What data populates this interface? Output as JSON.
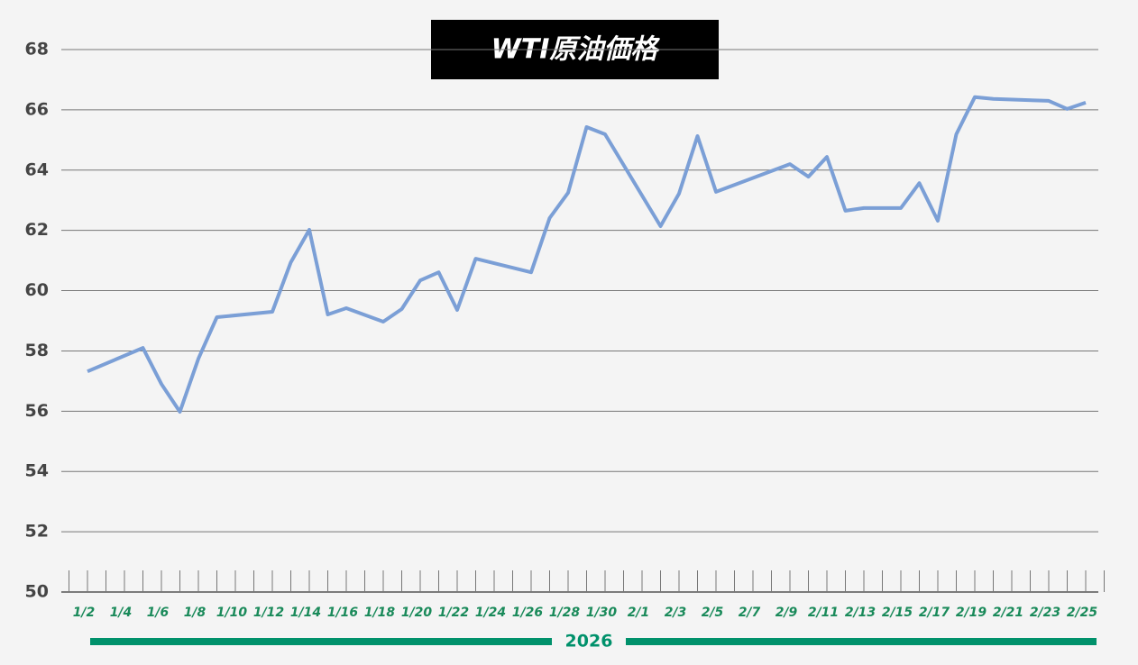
{
  "chart_data": {
    "type": "line",
    "title": "WTI原油価格",
    "year_label": "2026",
    "x": [
      "2026-01-02",
      "2026-01-05",
      "2026-01-06",
      "2026-01-07",
      "2026-01-08",
      "2026-01-09",
      "2026-01-12",
      "2026-01-13",
      "2026-01-14",
      "2026-01-15",
      "2026-01-16",
      "2026-01-18",
      "2026-01-19",
      "2026-01-20",
      "2026-01-21",
      "2026-01-22",
      "2026-01-23",
      "2026-01-26",
      "2026-01-27",
      "2026-01-28",
      "2026-01-29",
      "2026-01-30",
      "2026-02-02",
      "2026-02-03",
      "2026-02-04",
      "2026-02-05",
      "2026-02-09",
      "2026-02-10",
      "2026-02-11",
      "2026-02-12",
      "2026-02-13",
      "2026-02-15",
      "2026-02-16",
      "2026-02-17",
      "2026-02-18",
      "2026-02-19",
      "2026-02-20",
      "2026-02-23",
      "2026-02-24",
      "2026-02-25"
    ],
    "series": [
      {
        "name": "WTI",
        "color": "#7b9fd6",
        "values": [
          57.32,
          58.1,
          56.9,
          55.98,
          57.74,
          59.12,
          59.3,
          60.94,
          62.02,
          59.21,
          59.42,
          58.97,
          59.39,
          60.34,
          60.61,
          59.36,
          61.06,
          60.61,
          62.41,
          63.25,
          65.43,
          65.19,
          62.14,
          63.22,
          65.13,
          63.28,
          64.2,
          63.78,
          64.44,
          62.65,
          62.74,
          62.74,
          63.57,
          62.32,
          65.19,
          66.42,
          66.36,
          66.3,
          66.03,
          66.24
        ]
      }
    ],
    "ylim": [
      50,
      68
    ],
    "yticks": [
      50,
      52,
      54,
      56,
      58,
      60,
      62,
      64,
      66,
      68
    ],
    "grid": true,
    "xlim": [
      "2026-01-01",
      "2026-02-26"
    ],
    "xticks": [
      {
        "value": "2026-01-01",
        "label": null
      },
      {
        "value": "2026-01-02",
        "label": "1/2"
      },
      {
        "value": "2026-01-03",
        "label": null
      },
      {
        "value": "2026-01-04",
        "label": "1/4"
      },
      {
        "value": "2026-01-05",
        "label": null
      },
      {
        "value": "2026-01-06",
        "label": "1/6"
      },
      {
        "value": "2026-01-07",
        "label": null
      },
      {
        "value": "2026-01-08",
        "label": "1/8"
      },
      {
        "value": "2026-01-09",
        "label": null
      },
      {
        "value": "2026-01-10",
        "label": "1/10"
      },
      {
        "value": "2026-01-11",
        "label": null
      },
      {
        "value": "2026-01-12",
        "label": "1/12"
      },
      {
        "value": "2026-01-13",
        "label": null
      },
      {
        "value": "2026-01-14",
        "label": "1/14"
      },
      {
        "value": "2026-01-15",
        "label": null
      },
      {
        "value": "2026-01-16",
        "label": "1/16"
      },
      {
        "value": "2026-01-17",
        "label": null
      },
      {
        "value": "2026-01-18",
        "label": "1/18"
      },
      {
        "value": "2026-01-19",
        "label": null
      },
      {
        "value": "2026-01-20",
        "label": "1/20"
      },
      {
        "value": "2026-01-21",
        "label": null
      },
      {
        "value": "2026-01-22",
        "label": "1/22"
      },
      {
        "value": "2026-01-23",
        "label": null
      },
      {
        "value": "2026-01-24",
        "label": "1/24"
      },
      {
        "value": "2026-01-25",
        "label": null
      },
      {
        "value": "2026-01-26",
        "label": "1/26"
      },
      {
        "value": "2026-01-27",
        "label": null
      },
      {
        "value": "2026-01-28",
        "label": "1/28"
      },
      {
        "value": "2026-01-29",
        "label": null
      },
      {
        "value": "2026-01-30",
        "label": "1/30"
      },
      {
        "value": "2026-01-31",
        "label": null
      },
      {
        "value": "2026-02-01",
        "label": "2/1"
      },
      {
        "value": "2026-02-02",
        "label": null
      },
      {
        "value": "2026-02-03",
        "label": "2/3"
      },
      {
        "value": "2026-02-04",
        "label": null
      },
      {
        "value": "2026-02-05",
        "label": "2/5"
      },
      {
        "value": "2026-02-06",
        "label": null
      },
      {
        "value": "2026-02-07",
        "label": "2/7"
      },
      {
        "value": "2026-02-08",
        "label": null
      },
      {
        "value": "2026-02-09",
        "label": "2/9"
      },
      {
        "value": "2026-02-10",
        "label": null
      },
      {
        "value": "2026-02-11",
        "label": "2/11"
      },
      {
        "value": "2026-02-12",
        "label": null
      },
      {
        "value": "2026-02-13",
        "label": "2/13"
      },
      {
        "value": "2026-02-14",
        "label": null
      },
      {
        "value": "2026-02-15",
        "label": "2/15"
      },
      {
        "value": "2026-02-16",
        "label": null
      },
      {
        "value": "2026-02-17",
        "label": "2/17"
      },
      {
        "value": "2026-02-18",
        "label": null
      },
      {
        "value": "2026-02-19",
        "label": "2/19"
      },
      {
        "value": "2026-02-20",
        "label": null
      },
      {
        "value": "2026-02-21",
        "label": "2/21"
      },
      {
        "value": "2026-02-22",
        "label": null
      },
      {
        "value": "2026-02-23",
        "label": "2/23"
      },
      {
        "value": "2026-02-24",
        "label": null
      },
      {
        "value": "2026-02-25",
        "label": "2/25"
      },
      {
        "value": "2026-02-26",
        "label": null
      }
    ]
  }
}
